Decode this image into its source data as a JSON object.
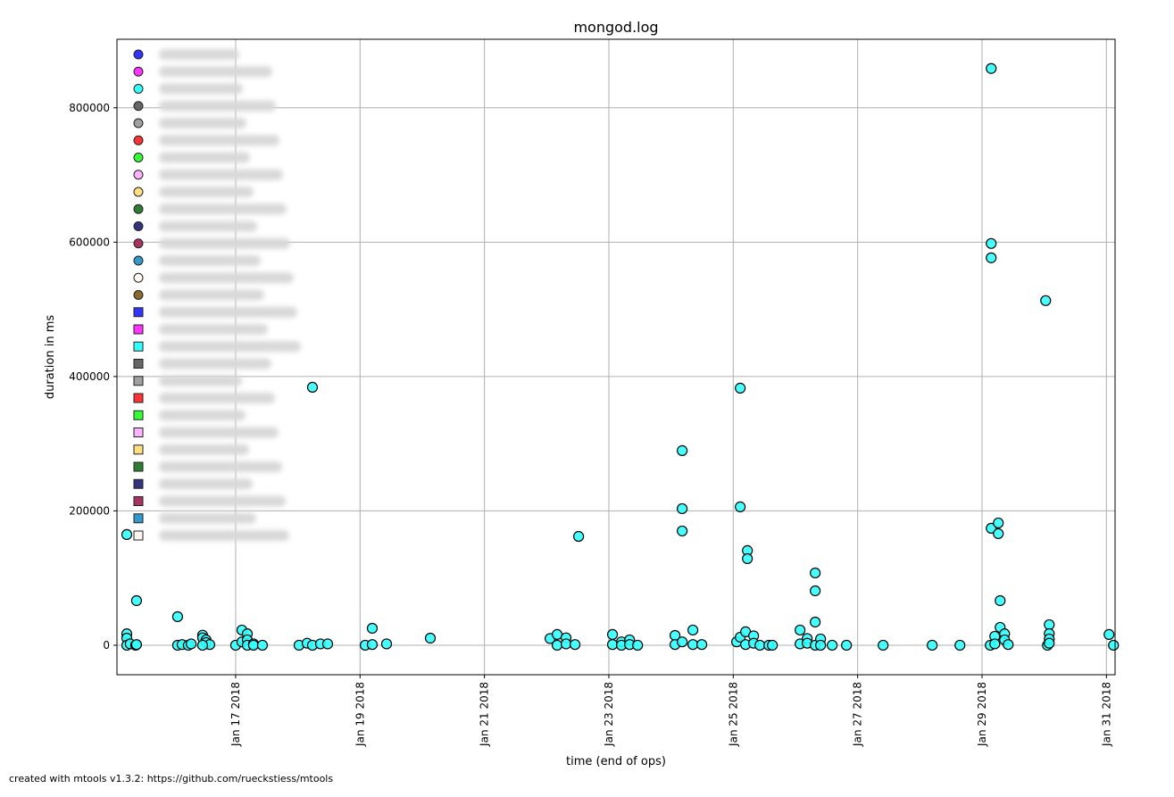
{
  "chart_data": {
    "type": "scatter",
    "title": "mongod.log",
    "xlabel": "time (end of ops)",
    "ylabel": "duration in ms",
    "xlim": [
      "2018-01-15T02:12",
      "2018-01-31T03:20"
    ],
    "ylim": [
      -43900,
      902000
    ],
    "grid": true,
    "legend_placement": "top-left",
    "x_ticks": [
      "2018-01-17",
      "2018-01-19",
      "2018-01-21",
      "2018-01-23",
      "2018-01-25",
      "2018-01-27",
      "2018-01-29",
      "2018-01-31"
    ],
    "x_tick_labels": [
      "Jan 17 2018",
      "Jan 19 2018",
      "Jan 21 2018",
      "Jan 23 2018",
      "Jan 25 2018",
      "Jan 27 2018",
      "Jan 29 2018",
      "Jan 31 2018"
    ],
    "y_ticks": [
      0,
      200000,
      400000,
      600000,
      800000
    ],
    "y_tick_labels": [
      "0",
      "200000",
      "400000",
      "600000",
      "800000"
    ],
    "point_color": "#33ffff",
    "point_edge_color": "#000000",
    "legend_markers": [
      {
        "shape": "circle",
        "color": "#3333ff"
      },
      {
        "shape": "circle",
        "color": "#ff33ff"
      },
      {
        "shape": "circle",
        "color": "#33ffff"
      },
      {
        "shape": "circle",
        "color": "#666666"
      },
      {
        "shape": "circle",
        "color": "#a0a0a0"
      },
      {
        "shape": "circle",
        "color": "#ff3333"
      },
      {
        "shape": "circle",
        "color": "#33ff33"
      },
      {
        "shape": "circle",
        "color": "#ffb3ff"
      },
      {
        "shape": "circle",
        "color": "#ffe080"
      },
      {
        "shape": "circle",
        "color": "#2e7d32"
      },
      {
        "shape": "circle",
        "color": "#333380"
      },
      {
        "shape": "circle",
        "color": "#a83260"
      },
      {
        "shape": "circle",
        "color": "#3399cc"
      },
      {
        "shape": "circle",
        "color": "#fff5f0"
      },
      {
        "shape": "circle",
        "color": "#8b6a2e"
      },
      {
        "shape": "square",
        "color": "#3333ff"
      },
      {
        "shape": "square",
        "color": "#ff33ff"
      },
      {
        "shape": "square",
        "color": "#33ffff"
      },
      {
        "shape": "square",
        "color": "#666666"
      },
      {
        "shape": "square",
        "color": "#a0a0a0"
      },
      {
        "shape": "square",
        "color": "#ff3333"
      },
      {
        "shape": "square",
        "color": "#33ff33"
      },
      {
        "shape": "square",
        "color": "#ffb3ff"
      },
      {
        "shape": "square",
        "color": "#ffe080"
      },
      {
        "shape": "square",
        "color": "#2e7d32"
      },
      {
        "shape": "square",
        "color": "#333380"
      },
      {
        "shape": "square",
        "color": "#a83260"
      },
      {
        "shape": "square",
        "color": "#3399cc"
      },
      {
        "shape": "square",
        "color": "#fff5f0"
      }
    ],
    "points": [
      [
        "2018-01-15T06:00",
        164800
      ],
      [
        "2018-01-15T06:00",
        17000
      ],
      [
        "2018-01-15T06:00",
        10600
      ],
      [
        "2018-01-15T06:00",
        0
      ],
      [
        "2018-01-15T07:20",
        2000
      ],
      [
        "2018-01-15T09:25",
        0
      ],
      [
        "2018-01-15T09:45",
        66400
      ],
      [
        "2018-01-15T09:45",
        1000
      ],
      [
        "2018-01-16T01:36",
        42500
      ],
      [
        "2018-01-16T01:36",
        0
      ],
      [
        "2018-01-16T03:20",
        1000
      ],
      [
        "2018-01-16T05:45",
        0
      ],
      [
        "2018-01-16T06:50",
        2000
      ],
      [
        "2018-01-16T11:15",
        15000
      ],
      [
        "2018-01-16T11:15",
        11000
      ],
      [
        "2018-01-16T12:36",
        8000
      ],
      [
        "2018-01-16T12:36",
        4000
      ],
      [
        "2018-01-16T14:00",
        1000
      ],
      [
        "2018-01-16T11:15",
        0
      ],
      [
        "2018-01-17T00:00",
        0
      ],
      [
        "2018-01-17T02:25",
        22600
      ],
      [
        "2018-01-17T02:25",
        5000
      ],
      [
        "2018-01-17T04:30",
        17000
      ],
      [
        "2018-01-17T04:30",
        8000
      ],
      [
        "2018-01-17T04:30",
        0
      ],
      [
        "2018-01-17T06:53",
        2000
      ],
      [
        "2018-01-17T06:53",
        0
      ],
      [
        "2018-01-17T10:20",
        0
      ],
      [
        "2018-01-18T00:28",
        0
      ],
      [
        "2018-01-18T03:34",
        3000
      ],
      [
        "2018-01-18T05:38",
        384000
      ],
      [
        "2018-01-18T05:38",
        0
      ],
      [
        "2018-01-18T08:44",
        2000
      ],
      [
        "2018-01-18T11:30",
        2000
      ],
      [
        "2018-01-19T02:00",
        0
      ],
      [
        "2018-01-19T04:43",
        25200
      ],
      [
        "2018-01-19T04:43",
        1000
      ],
      [
        "2018-01-19T10:14",
        2000
      ],
      [
        "2018-01-20T03:07",
        10600
      ],
      [
        "2018-01-22T01:18",
        10000
      ],
      [
        "2018-01-22T04:03",
        16000
      ],
      [
        "2018-01-22T04:03",
        0
      ],
      [
        "2018-01-22T07:30",
        11000
      ],
      [
        "2018-01-22T07:30",
        2000
      ],
      [
        "2018-01-22T10:57",
        1000
      ],
      [
        "2018-01-22T12:20",
        162000
      ],
      [
        "2018-01-23T01:25",
        16000
      ],
      [
        "2018-01-23T01:25",
        1000
      ],
      [
        "2018-01-23T04:52",
        5000
      ],
      [
        "2018-01-23T04:52",
        0
      ],
      [
        "2018-01-23T08:00",
        8000
      ],
      [
        "2018-01-23T08:00",
        1000
      ],
      [
        "2018-01-23T11:06",
        0
      ],
      [
        "2018-01-24T01:32",
        14600
      ],
      [
        "2018-01-24T01:32",
        1000
      ],
      [
        "2018-01-24T04:18",
        289700
      ],
      [
        "2018-01-24T04:18",
        203300
      ],
      [
        "2018-01-24T04:18",
        170100
      ],
      [
        "2018-01-24T04:18",
        5000
      ],
      [
        "2018-01-24T08:26",
        22600
      ],
      [
        "2018-01-24T08:26",
        1000
      ],
      [
        "2018-01-24T11:52",
        1000
      ],
      [
        "2018-01-25T01:19",
        5000
      ],
      [
        "2018-01-25T02:42",
        382700
      ],
      [
        "2018-01-25T02:42",
        206000
      ],
      [
        "2018-01-25T02:42",
        12000
      ],
      [
        "2018-01-25T04:46",
        20000
      ],
      [
        "2018-01-25T04:46",
        1000
      ],
      [
        "2018-01-25T05:28",
        140900
      ],
      [
        "2018-01-25T05:28",
        128900
      ],
      [
        "2018-01-25T07:52",
        14000
      ],
      [
        "2018-01-25T07:52",
        3000
      ],
      [
        "2018-01-25T10:17",
        0
      ],
      [
        "2018-01-25T13:44",
        0
      ],
      [
        "2018-01-25T15:06",
        0
      ],
      [
        "2018-01-26T01:47",
        22600
      ],
      [
        "2018-01-26T01:47",
        2000
      ],
      [
        "2018-01-26T04:32",
        10000
      ],
      [
        "2018-01-26T04:32",
        3000
      ],
      [
        "2018-01-26T07:38",
        107600
      ],
      [
        "2018-01-26T07:38",
        81000
      ],
      [
        "2018-01-26T07:38",
        34500
      ],
      [
        "2018-01-26T07:38",
        0
      ],
      [
        "2018-01-26T09:42",
        9300
      ],
      [
        "2018-01-26T09:42",
        0
      ],
      [
        "2018-01-26T14:11",
        0
      ],
      [
        "2018-01-26T19:42",
        0
      ],
      [
        "2018-01-27T09:50",
        0
      ],
      [
        "2018-01-28T04:46",
        0
      ],
      [
        "2018-01-28T15:28",
        0
      ],
      [
        "2018-01-29T03:11",
        0
      ],
      [
        "2018-01-29T03:32",
        858500
      ],
      [
        "2018-01-29T03:32",
        598000
      ],
      [
        "2018-01-29T03:32",
        576700
      ],
      [
        "2018-01-29T03:32",
        174100
      ],
      [
        "2018-01-29T04:55",
        13300
      ],
      [
        "2018-01-29T04:55",
        2000
      ],
      [
        "2018-01-29T06:17",
        182000
      ],
      [
        "2018-01-29T06:17",
        166100
      ],
      [
        "2018-01-29T06:59",
        66400
      ],
      [
        "2018-01-29T06:59",
        26600
      ],
      [
        "2018-01-29T08:42",
        17000
      ],
      [
        "2018-01-29T08:42",
        8000
      ],
      [
        "2018-01-29T10:05",
        1000
      ],
      [
        "2018-01-30T00:33",
        513000
      ],
      [
        "2018-01-30T01:15",
        0
      ],
      [
        "2018-01-30T01:56",
        30600
      ],
      [
        "2018-01-30T01:56",
        17300
      ],
      [
        "2018-01-30T01:56",
        9300
      ],
      [
        "2018-01-30T01:56",
        3000
      ],
      [
        "2018-01-31T01:00",
        16000
      ],
      [
        "2018-01-31T02:44",
        0
      ]
    ]
  },
  "footer": "created with mtools v1.3.2: https://github.com/rueckstiess/mtools"
}
